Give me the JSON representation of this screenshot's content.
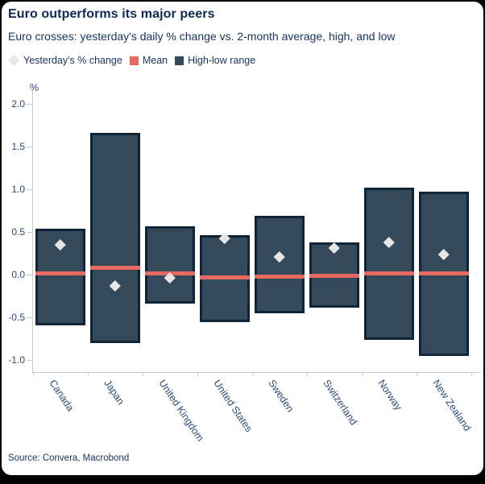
{
  "card": {
    "title": "Euro outperforms its major peers",
    "subtitle": "Euro crosses: yesterday's daily % change vs. 2-month average, high, and low",
    "source": "Source: Convera, Macrobond"
  },
  "legend": [
    {
      "label": "Yesterday's % change",
      "marker": "diamond",
      "color": "#e8e6e2"
    },
    {
      "label": "Mean",
      "marker": "square",
      "color": "#e8695f"
    },
    {
      "label": "High-low range",
      "marker": "square",
      "color": "#35495c"
    }
  ],
  "colors": {
    "background": "#000000",
    "card": "#ffffff",
    "title_text": "#0e2a52",
    "body_text": "#16335f",
    "axis_text": "#2a4a7a",
    "axis_line": "#c7cacd",
    "bar_fill": "#35495c",
    "bar_border": "#0f2435",
    "mean_line": "#e8695f",
    "diamond": "#e8e6e2"
  },
  "chart_data": {
    "type": "bar",
    "subtype": "floating-range-with-markers",
    "title": "Euro outperforms its major peers",
    "subtitle": "Euro crosses: yesterday's daily % change vs. 2-month average, high, and low",
    "categories": [
      "Canada",
      "Japan",
      "United Kingdom",
      "United States",
      "Sweden",
      "Switzerland",
      "Norway",
      "New Zealand"
    ],
    "series": [
      {
        "name": "High-low range",
        "type": "range",
        "high": [
          0.54,
          1.66,
          0.57,
          0.46,
          0.69,
          0.38,
          1.02,
          0.97
        ],
        "low": [
          -0.59,
          -0.8,
          -0.34,
          -0.56,
          -0.45,
          -0.39,
          -0.76,
          -0.95
        ]
      },
      {
        "name": "Mean",
        "type": "line-tick",
        "values": [
          0.01,
          0.08,
          0.01,
          -0.03,
          -0.02,
          -0.01,
          0.01,
          0.01
        ]
      },
      {
        "name": "Yesterday's % change",
        "type": "point-diamond",
        "values": [
          0.35,
          -0.13,
          -0.04,
          0.43,
          0.21,
          0.31,
          0.38,
          0.24
        ]
      }
    ],
    "xlabel": "",
    "ylabel": "%",
    "yticks": [
      2.0,
      1.5,
      1.0,
      0.5,
      0.0,
      -0.5,
      -1.0
    ],
    "ylim": [
      -1.14,
      2.17
    ],
    "grid": false,
    "legend_position": "top-left"
  }
}
